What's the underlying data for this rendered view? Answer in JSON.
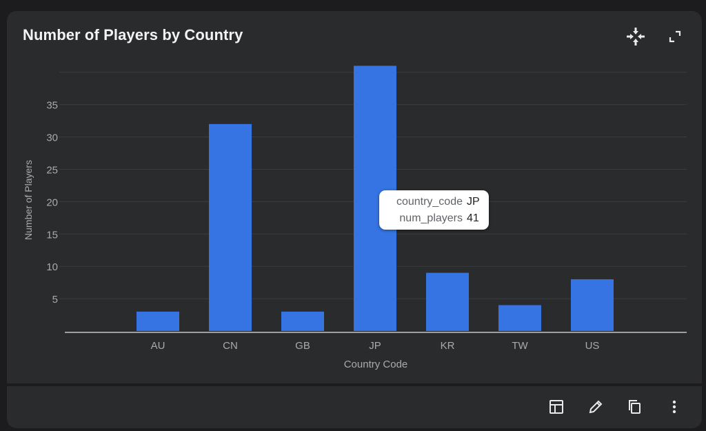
{
  "card": {
    "title": "Number of Players by Country",
    "icons": [
      "focus-icon",
      "fullscreen-icon"
    ]
  },
  "chart_data": {
    "type": "bar",
    "categories": [
      "AU",
      "CN",
      "GB",
      "JP",
      "KR",
      "TW",
      "US"
    ],
    "values": [
      3,
      32,
      3,
      41,
      9,
      4,
      8
    ],
    "xlabel": "Country Code",
    "ylabel": "Number of Players",
    "yticks": [
      5,
      10,
      15,
      20,
      25,
      30,
      35
    ],
    "ylim": [
      0,
      41
    ],
    "grid": true,
    "bar_color": "#3574e2"
  },
  "tooltip": {
    "rows": [
      {
        "key": "country_code",
        "value": "JP"
      },
      {
        "key": "num_players",
        "value": "41"
      }
    ]
  },
  "footer": {
    "icons": [
      "table-icon",
      "edit-pencil-icon",
      "copy-icon",
      "more-vert-icon"
    ]
  },
  "colors": {
    "background": "#1c1c1e",
    "card": "#2a2b2d",
    "gridline": "#3c3d40",
    "axis": "#c4c7c5",
    "text_muted": "#a8abad"
  }
}
